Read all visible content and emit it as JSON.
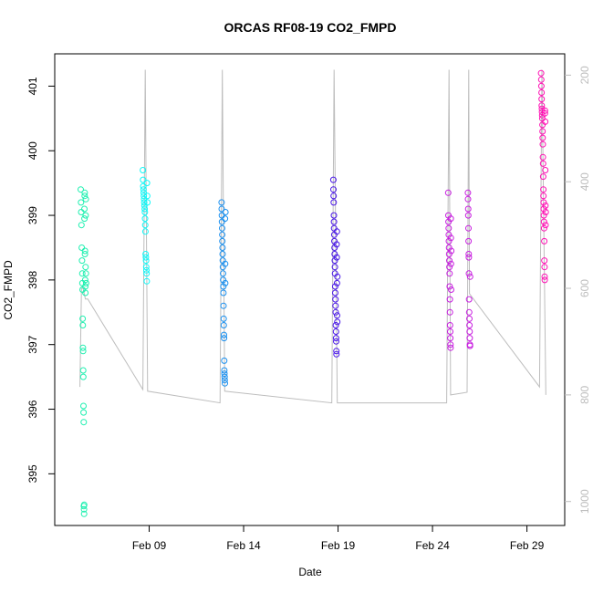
{
  "chart_data": {
    "type": "scatter",
    "title": "ORCAS RF08-19 CO2_FMPD",
    "xlabel": "Date",
    "ylabel": "CO2_FMPD",
    "x_range": [
      "2016-02-04",
      "2016-03-02"
    ],
    "ylim": [
      394.2,
      401.5
    ],
    "y_ticks": [
      395,
      396,
      397,
      398,
      399,
      400,
      401
    ],
    "x_ticks": [
      {
        "date": "2016-02-09",
        "label": "Feb 09"
      },
      {
        "date": "2016-02-14",
        "label": "Feb 14"
      },
      {
        "date": "2016-02-19",
        "label": "Feb 19"
      },
      {
        "date": "2016-02-24",
        "label": "Feb 24"
      },
      {
        "date": "2016-02-29",
        "label": "Feb 29"
      }
    ],
    "secondary_axis": {
      "side": "right",
      "reversed": true,
      "range": [
        1045,
        160
      ],
      "ticks": [
        200,
        400,
        600,
        800,
        1000
      ],
      "color": "#bdbdbd"
    },
    "colors": {
      "points": [
        "#00ffaa",
        "#00ffff",
        "#0080ff",
        "#4000ff",
        "#c800ff",
        "#ff00b0"
      ],
      "secondary_line": "#bdbdbd"
    },
    "series": [
      {
        "flight": "RF08",
        "color": "#1ef0b0",
        "x": [
          "2016-02-05T09:00",
          "2016-02-05T09:20",
          "2016-02-05T09:40",
          "2016-02-05T10:00",
          "2016-02-05T10:20",
          "2016-02-05T10:40",
          "2016-02-05T11:00",
          "2016-02-05T11:10",
          "2016-02-05T11:20",
          "2016-02-05T11:30",
          "2016-02-05T11:40",
          "2016-02-05T11:50",
          "2016-02-05T12:00",
          "2016-02-05T12:10",
          "2016-02-05T12:20",
          "2016-02-05T12:30",
          "2016-02-05T12:40",
          "2016-02-05T12:50",
          "2016-02-05T13:00",
          "2016-02-05T13:10",
          "2016-02-05T13:20",
          "2016-02-05T13:30",
          "2016-02-05T13:40",
          "2016-02-05T13:50",
          "2016-02-05T14:00",
          "2016-02-05T14:10",
          "2016-02-05T14:20",
          "2016-02-05T14:30",
          "2016-02-05T14:40",
          "2016-02-05T14:50",
          "2016-02-05T15:00",
          "2016-02-05T15:10",
          "2016-02-05T15:20",
          "2016-02-05T15:30",
          "2016-02-05T15:40",
          "2016-02-05T15:50"
        ],
        "y": [
          399.4,
          399.2,
          399.05,
          398.85,
          398.5,
          398.3,
          398.1,
          397.95,
          397.85,
          397.4,
          397.3,
          396.95,
          396.9,
          396.6,
          396.5,
          396.05,
          395.95,
          395.8,
          394.5,
          394.45,
          394.38,
          394.52,
          399.1,
          398.95,
          399.3,
          399.35,
          398.4,
          398.45,
          398.0,
          397.9,
          397.8,
          398.2,
          399.0,
          399.25,
          398.1,
          397.95
        ]
      },
      {
        "flight": "RF09",
        "color": "#10f8f8",
        "x": [
          "2016-02-08T16:00",
          "2016-02-08T16:15",
          "2016-02-08T16:30",
          "2016-02-08T16:45",
          "2016-02-08T17:00",
          "2016-02-08T17:15",
          "2016-02-08T17:30",
          "2016-02-08T17:45",
          "2016-02-08T18:00",
          "2016-02-08T18:15",
          "2016-02-08T18:30",
          "2016-02-08T18:45",
          "2016-02-08T19:00",
          "2016-02-08T19:15",
          "2016-02-08T19:30",
          "2016-02-08T19:45",
          "2016-02-08T20:00",
          "2016-02-08T20:15",
          "2016-02-08T20:30",
          "2016-02-08T20:45",
          "2016-02-08T21:00",
          "2016-02-08T21:15",
          "2016-02-08T21:30",
          "2016-02-08T21:45"
        ],
        "y": [
          399.7,
          399.55,
          399.45,
          399.4,
          399.35,
          399.3,
          399.25,
          399.2,
          399.15,
          399.1,
          399.05,
          398.95,
          398.85,
          398.75,
          398.4,
          398.35,
          398.3,
          398.2,
          398.15,
          398.1,
          397.98,
          399.5,
          399.3,
          399.2
        ]
      },
      {
        "flight": "RF10",
        "color": "#1a90f0",
        "x": [
          "2016-02-12T20:00",
          "2016-02-12T20:10",
          "2016-02-12T20:20",
          "2016-02-12T20:30",
          "2016-02-12T20:40",
          "2016-02-12T20:50",
          "2016-02-12T21:00",
          "2016-02-12T21:10",
          "2016-02-12T21:20",
          "2016-02-12T21:30",
          "2016-02-12T21:40",
          "2016-02-12T21:50",
          "2016-02-12T22:00",
          "2016-02-12T22:10",
          "2016-02-12T22:20",
          "2016-02-12T22:30",
          "2016-02-12T22:40",
          "2016-02-12T22:50",
          "2016-02-12T23:00",
          "2016-02-12T23:10",
          "2016-02-12T23:20",
          "2016-02-12T23:30",
          "2016-02-12T23:40",
          "2016-02-12T23:50",
          "2016-02-13T00:00",
          "2016-02-13T00:10",
          "2016-02-13T00:20",
          "2016-02-13T00:30",
          "2016-02-13T00:40",
          "2016-02-13T00:50"
        ],
        "y": [
          399.2,
          399.1,
          399.0,
          398.9,
          398.8,
          398.7,
          398.6,
          398.5,
          398.4,
          398.3,
          398.2,
          398.1,
          398.0,
          397.9,
          397.8,
          397.6,
          397.4,
          397.3,
          397.15,
          397.1,
          396.75,
          396.6,
          396.55,
          396.5,
          396.45,
          396.4,
          398.95,
          398.25,
          397.95,
          399.05
        ]
      },
      {
        "flight": "RF12",
        "color": "#4a18e8",
        "x": [
          "2016-02-18T18:00",
          "2016-02-18T18:10",
          "2016-02-18T18:20",
          "2016-02-18T18:30",
          "2016-02-18T18:40",
          "2016-02-18T18:50",
          "2016-02-18T19:00",
          "2016-02-18T19:10",
          "2016-02-18T19:20",
          "2016-02-18T19:30",
          "2016-02-18T19:40",
          "2016-02-18T19:50",
          "2016-02-18T20:00",
          "2016-02-18T20:10",
          "2016-02-18T20:20",
          "2016-02-18T20:30",
          "2016-02-18T20:40",
          "2016-02-18T20:50",
          "2016-02-18T21:00",
          "2016-02-18T21:10",
          "2016-02-18T21:20",
          "2016-02-18T21:30",
          "2016-02-18T21:40",
          "2016-02-18T21:50",
          "2016-02-18T22:00",
          "2016-02-18T22:10",
          "2016-02-18T22:20",
          "2016-02-18T22:30",
          "2016-02-18T22:40",
          "2016-02-18T22:50",
          "2016-02-18T23:00",
          "2016-02-18T23:10"
        ],
        "y": [
          399.55,
          399.4,
          399.3,
          399.2,
          399.0,
          398.9,
          398.8,
          398.7,
          398.6,
          398.5,
          398.4,
          398.3,
          398.2,
          398.1,
          397.9,
          397.8,
          397.7,
          397.6,
          397.5,
          397.3,
          397.2,
          397.1,
          397.05,
          396.9,
          396.85,
          398.55,
          398.35,
          398.75,
          397.95,
          397.45,
          397.35,
          398.05
        ]
      },
      {
        "flight": "RF15",
        "color": "#c81ee0",
        "x": [
          "2016-02-24T20:00",
          "2016-02-24T20:10",
          "2016-02-24T20:20",
          "2016-02-24T20:30",
          "2016-02-24T20:40",
          "2016-02-24T20:50",
          "2016-02-24T21:00",
          "2016-02-24T21:10",
          "2016-02-24T21:20",
          "2016-02-24T21:30",
          "2016-02-24T21:40",
          "2016-02-24T21:50",
          "2016-02-24T22:00",
          "2016-02-24T22:10",
          "2016-02-24T22:20",
          "2016-02-24T22:30",
          "2016-02-24T22:40",
          "2016-02-24T22:50",
          "2016-02-24T23:00",
          "2016-02-24T23:10",
          "2016-02-24T23:20",
          "2016-02-24T23:30",
          "2016-02-24T23:40",
          "2016-02-24T23:50",
          "2016-02-25T21:00",
          "2016-02-25T21:10",
          "2016-02-25T21:20",
          "2016-02-25T21:30",
          "2016-02-25T21:40",
          "2016-02-25T21:50",
          "2016-02-25T22:00",
          "2016-02-25T22:10",
          "2016-02-25T22:20",
          "2016-02-25T22:30",
          "2016-02-25T22:40",
          "2016-02-25T22:50",
          "2016-02-25T23:00",
          "2016-02-25T23:10",
          "2016-02-25T23:20",
          "2016-02-25T23:30",
          "2016-02-25T23:40",
          "2016-02-25T23:50"
        ],
        "y": [
          399.35,
          399.0,
          398.9,
          398.8,
          398.7,
          398.6,
          398.5,
          398.4,
          398.3,
          398.2,
          398.1,
          397.9,
          397.7,
          397.5,
          397.3,
          397.2,
          397.1,
          397.0,
          396.95,
          398.95,
          398.65,
          398.25,
          397.85,
          398.45,
          399.35,
          399.25,
          399.1,
          399.0,
          398.8,
          398.6,
          398.4,
          398.35,
          398.1,
          397.7,
          397.5,
          397.4,
          397.3,
          397.2,
          397.1,
          397.0,
          396.98,
          398.05
        ]
      },
      {
        "flight": "RF19",
        "color": "#ff10b4",
        "x": [
          "2016-02-29T18:00",
          "2016-02-29T18:10",
          "2016-02-29T18:20",
          "2016-02-29T18:30",
          "2016-02-29T18:40",
          "2016-02-29T18:50",
          "2016-02-29T19:00",
          "2016-02-29T19:10",
          "2016-02-29T19:20",
          "2016-02-29T19:30",
          "2016-02-29T19:40",
          "2016-02-29T19:50",
          "2016-02-29T20:00",
          "2016-02-29T20:10",
          "2016-02-29T20:20",
          "2016-02-29T20:30",
          "2016-02-29T20:40",
          "2016-02-29T20:50",
          "2016-02-29T21:00",
          "2016-02-29T21:10",
          "2016-02-29T21:20",
          "2016-02-29T21:30",
          "2016-02-29T21:40",
          "2016-02-29T21:50",
          "2016-02-29T22:00",
          "2016-02-29T22:10",
          "2016-02-29T22:20",
          "2016-02-29T22:30",
          "2016-02-29T22:40",
          "2016-02-29T22:50",
          "2016-02-29T23:00",
          "2016-02-29T23:10",
          "2016-02-29T23:20",
          "2016-02-29T23:30",
          "2016-02-29T23:40",
          "2016-02-29T23:50"
        ],
        "y": [
          401.2,
          401.1,
          401.0,
          400.9,
          400.8,
          400.7,
          400.65,
          400.6,
          400.55,
          400.5,
          400.4,
          400.3,
          400.2,
          400.1,
          399.9,
          399.8,
          399.6,
          399.4,
          399.3,
          399.2,
          399.1,
          399.0,
          398.9,
          398.8,
          398.6,
          398.3,
          398.2,
          398.05,
          398.0,
          400.58,
          400.62,
          400.45,
          399.7,
          399.15,
          398.85,
          399.05
        ]
      }
    ],
    "secondary_series": {
      "name": "",
      "color": "#bdbdbd",
      "x": [
        "2016-02-05T08:00",
        "2016-02-05T10:00",
        "2016-02-05T12:00",
        "2016-02-05T15:00",
        "2016-02-05T18:00",
        "2016-02-08T16:00",
        "2016-02-08T19:00",
        "2016-02-08T22:00",
        "2016-02-12T18:00",
        "2016-02-12T21:00",
        "2016-02-13T00:00",
        "2016-02-18T16:00",
        "2016-02-18T19:00",
        "2016-02-18T23:00",
        "2016-02-24T18:00",
        "2016-02-24T21:00",
        "2016-02-24T23:00",
        "2016-02-25T20:00",
        "2016-02-25T22:00",
        "2016-02-25T23:00",
        "2016-02-29T16:00",
        "2016-02-29T19:00",
        "2016-03-01T00:00"
      ],
      "y": [
        785,
        600,
        600,
        620,
        620,
        790,
        190,
        793,
        815,
        190,
        793,
        815,
        190,
        815,
        815,
        190,
        800,
        795,
        190,
        610,
        785,
        190,
        800
      ]
    }
  }
}
